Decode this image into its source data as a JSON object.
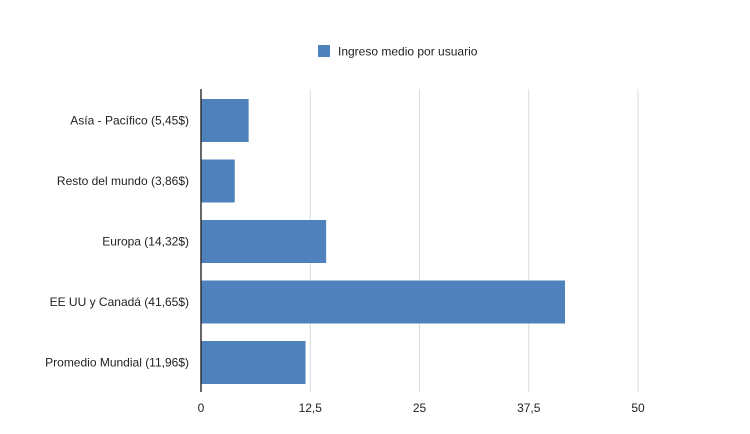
{
  "chart_data": {
    "type": "bar",
    "orientation": "horizontal",
    "categories": [
      "Asía - Pacífico (5,45$)",
      "Resto del mundo (3,86$)",
      "Europa (14,32$)",
      "EE UU y Canadá (41,65$)",
      "Promedio Mundial (11,96$)"
    ],
    "series": [
      {
        "name": "Ingreso medio por usuario",
        "values": [
          5.45,
          3.86,
          14.32,
          41.65,
          11.96
        ],
        "color": "#4f81bd"
      }
    ],
    "xlim": [
      0,
      50
    ],
    "xticks": [
      0,
      12.5,
      25,
      37.5,
      50
    ],
    "xtick_labels": [
      "0",
      "12,5",
      "25",
      "37,5",
      "50"
    ],
    "grid": "vertical",
    "legend_position": "top-center",
    "title": "",
    "xlabel": "",
    "ylabel": ""
  }
}
